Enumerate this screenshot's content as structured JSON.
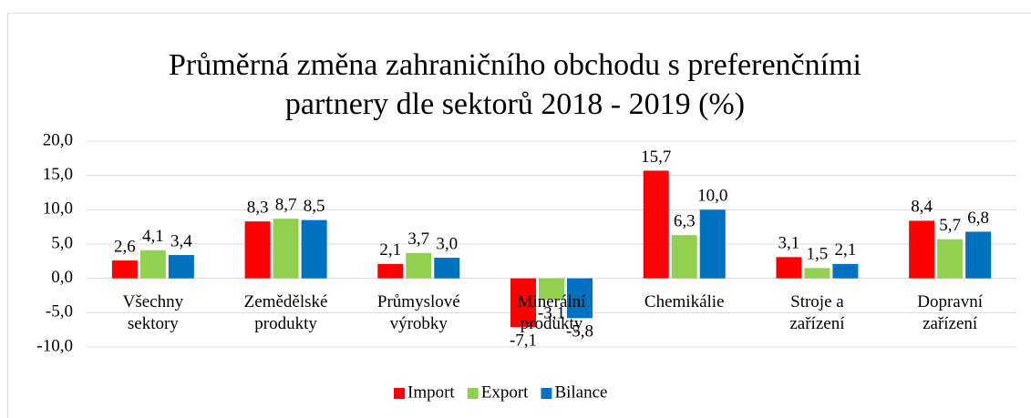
{
  "chart_data": {
    "type": "bar",
    "title": "Průměrná změna zahraničního obchodu s preferenčními partnery dle sektorů 2018 - 2019 (%)",
    "categories": [
      "Všechny sektory",
      "Zemědělské produkty",
      "Průmyslové výrobky",
      "Minerální produkty",
      "Chemikálie",
      "Stroje a zařízení",
      "Dopravní zařízení"
    ],
    "series": [
      {
        "name": "Import",
        "color": "#ff0000",
        "values": [
          2.6,
          8.3,
          2.1,
          -7.1,
          15.7,
          3.1,
          8.4
        ],
        "value_labels": [
          "2,6",
          "8,3",
          "2,1",
          "-7,1",
          "15,7",
          "3,1",
          "8,4"
        ]
      },
      {
        "name": "Export",
        "color": "#92d050",
        "values": [
          4.1,
          8.7,
          3.7,
          -3.1,
          6.3,
          1.5,
          5.7
        ],
        "value_labels": [
          "4,1",
          "8,7",
          "3,7",
          "-3,1",
          "6,3",
          "1,5",
          "5,7"
        ]
      },
      {
        "name": "Bilance",
        "color": "#0070c0",
        "values": [
          3.4,
          8.5,
          3.0,
          -5.8,
          10.0,
          2.1,
          6.8
        ],
        "value_labels": [
          "3,4",
          "8,5",
          "3,0",
          "-5,8",
          "10,0",
          "2,1",
          "6,8"
        ]
      }
    ],
    "ylim": [
      -10,
      20
    ],
    "yticks": [
      {
        "value": -10,
        "label": "-10,0"
      },
      {
        "value": -5,
        "label": "-5,0"
      },
      {
        "value": 0,
        "label": "0,0"
      },
      {
        "value": 5,
        "label": "5,0"
      },
      {
        "value": 10,
        "label": "10,0"
      },
      {
        "value": 15,
        "label": "15,0"
      },
      {
        "value": 20,
        "label": "20,0"
      }
    ],
    "grid": true,
    "legend": "bottom"
  }
}
